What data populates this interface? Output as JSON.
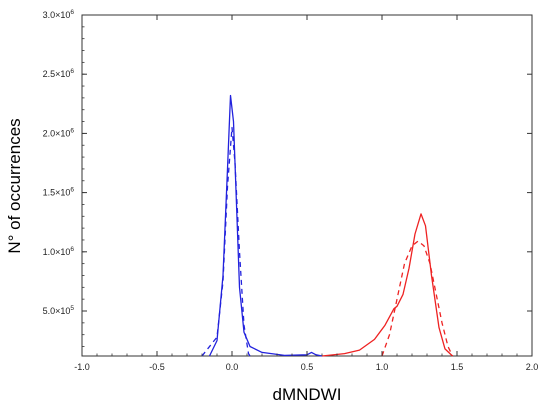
{
  "chart_data": {
    "type": "line",
    "title": "",
    "xlabel": "dMNDWI",
    "ylabel": "N° of occurrences",
    "xlim": [
      -1.0,
      2.0
    ],
    "ylim": [
      120000,
      3000000
    ],
    "grid": false,
    "legend": "none",
    "x_ticks": [
      {
        "value": -1.0,
        "label": "-1.0"
      },
      {
        "value": -0.5,
        "label": "-0.5"
      },
      {
        "value": 0.0,
        "label": "0.0"
      },
      {
        "value": 0.5,
        "label": "0.5"
      },
      {
        "value": 1.0,
        "label": "1.0"
      },
      {
        "value": 1.5,
        "label": "1.5"
      },
      {
        "value": 2.0,
        "label": "2.0"
      }
    ],
    "y_ticks": [
      {
        "value": 500000,
        "mant": "5.0×10",
        "exp": "5"
      },
      {
        "value": 1000000,
        "mant": "1.0×10",
        "exp": "6"
      },
      {
        "value": 1500000,
        "mant": "1.5×10",
        "exp": "6"
      },
      {
        "value": 2000000,
        "mant": "2.0×10",
        "exp": "6"
      },
      {
        "value": 2500000,
        "mant": "2.5×10",
        "exp": "6"
      },
      {
        "value": 3000000,
        "mant": "3.0×10",
        "exp": "6"
      }
    ],
    "series": [
      {
        "color": "#2222dd",
        "style": "solid",
        "points": [
          [
            -0.15,
            120000
          ],
          [
            -0.1,
            250000
          ],
          [
            -0.06,
            800000
          ],
          [
            -0.03,
            1700000
          ],
          [
            -0.01,
            2320000
          ],
          [
            0.01,
            2100000
          ],
          [
            0.03,
            1400000
          ],
          [
            0.05,
            700000
          ],
          [
            0.08,
            320000
          ],
          [
            0.12,
            200000
          ],
          [
            0.2,
            150000
          ],
          [
            0.35,
            125000
          ],
          [
            0.5,
            130000
          ],
          [
            0.53,
            150000
          ],
          [
            0.56,
            130000
          ],
          [
            0.6,
            120000
          ]
        ]
      },
      {
        "color": "#2222dd",
        "style": "dashed",
        "points": [
          [
            -0.2,
            120000
          ],
          [
            -0.1,
            280000
          ],
          [
            -0.06,
            750000
          ],
          [
            -0.03,
            1550000
          ],
          [
            0.0,
            2050000
          ],
          [
            0.02,
            1750000
          ],
          [
            0.05,
            1000000
          ],
          [
            0.08,
            380000
          ],
          [
            0.11,
            140000
          ],
          [
            0.12,
            120000
          ]
        ]
      },
      {
        "color": "#ee2222",
        "style": "solid",
        "points": [
          [
            0.6,
            120000
          ],
          [
            0.75,
            140000
          ],
          [
            0.85,
            170000
          ],
          [
            0.95,
            260000
          ],
          [
            1.02,
            380000
          ],
          [
            1.08,
            520000
          ],
          [
            1.1,
            540000
          ],
          [
            1.14,
            640000
          ],
          [
            1.18,
            860000
          ],
          [
            1.22,
            1150000
          ],
          [
            1.26,
            1320000
          ],
          [
            1.29,
            1220000
          ],
          [
            1.33,
            800000
          ],
          [
            1.38,
            360000
          ],
          [
            1.42,
            180000
          ],
          [
            1.47,
            120000
          ]
        ]
      },
      {
        "color": "#ee2222",
        "style": "dashed",
        "points": [
          [
            1.0,
            120000
          ],
          [
            1.05,
            300000
          ],
          [
            1.1,
            600000
          ],
          [
            1.15,
            900000
          ],
          [
            1.2,
            1050000
          ],
          [
            1.24,
            1090000
          ],
          [
            1.28,
            1050000
          ],
          [
            1.32,
            900000
          ],
          [
            1.36,
            650000
          ],
          [
            1.4,
            400000
          ],
          [
            1.44,
            200000
          ],
          [
            1.47,
            120000
          ]
        ]
      }
    ]
  }
}
